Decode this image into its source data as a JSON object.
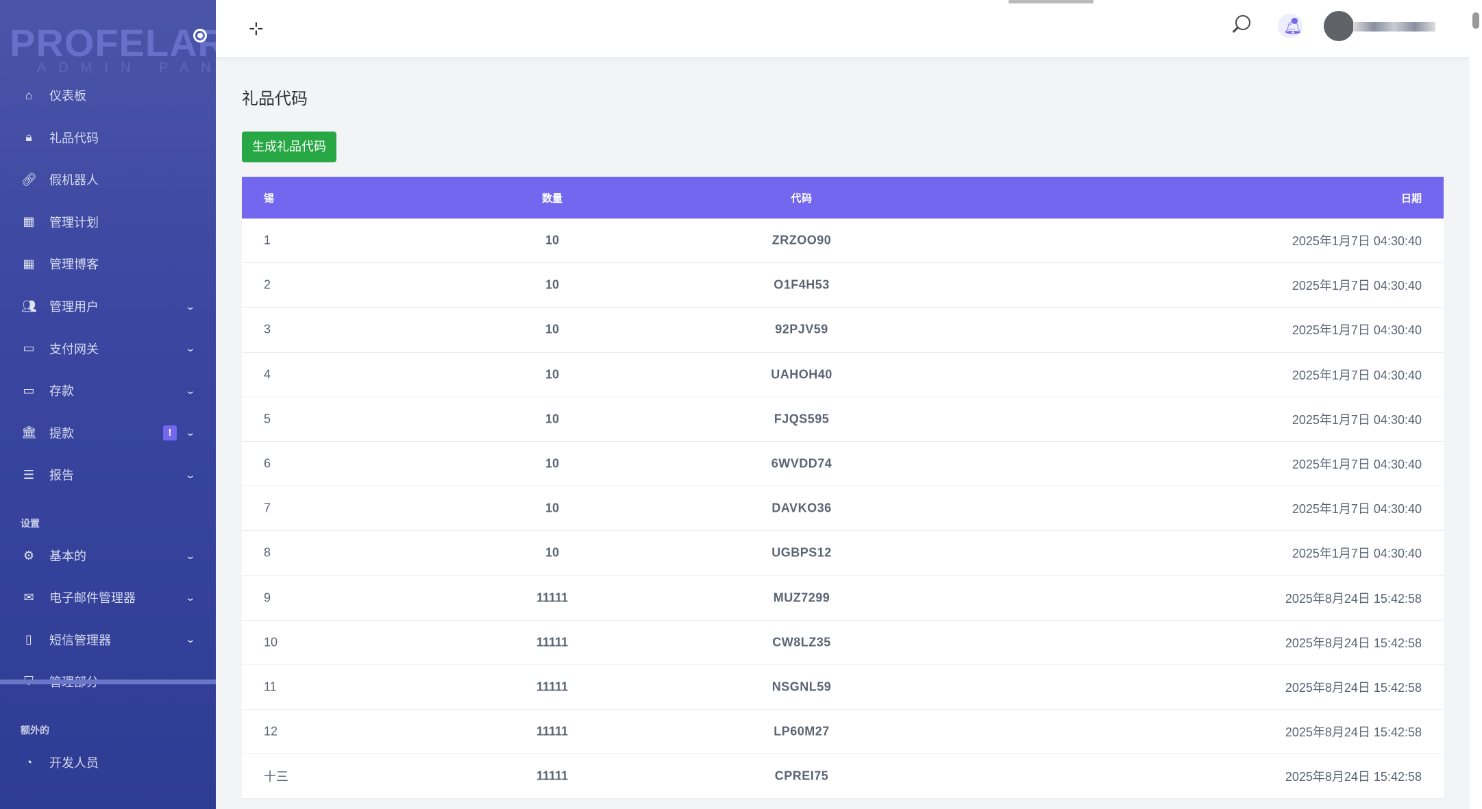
{
  "brand": {
    "logo": "PROFELAR",
    "subtitle": "ADMIN PANEL"
  },
  "sidebar": {
    "items": [
      {
        "label": "仪表板",
        "icon": "home-icon",
        "chevron": false
      },
      {
        "label": "礼品代码",
        "icon": "lock-icon",
        "chevron": false
      },
      {
        "label": "假机器人",
        "icon": "link-icon",
        "chevron": false
      },
      {
        "label": "管理计划",
        "icon": "calculator-icon",
        "chevron": false
      },
      {
        "label": "管理博客",
        "icon": "calculator-icon",
        "chevron": false
      },
      {
        "label": "管理用户",
        "icon": "users-icon",
        "chevron": true
      },
      {
        "label": "支付网关",
        "icon": "credit-card-icon",
        "chevron": true
      },
      {
        "label": "存款",
        "icon": "credit-card-icon",
        "chevron": true
      },
      {
        "label": "提款",
        "icon": "bank-icon",
        "chevron": true,
        "badge": "!"
      },
      {
        "label": "报告",
        "icon": "list-icon",
        "chevron": true
      }
    ],
    "settings_title": "设置",
    "settings_items": [
      {
        "label": "基本的",
        "icon": "gear-icon"
      },
      {
        "label": "电子邮件管理器",
        "icon": "envelope-icon"
      },
      {
        "label": "短信管理器",
        "icon": "mobile-icon"
      },
      {
        "label": "管理部分",
        "icon": "html5-icon"
      }
    ],
    "extra_title": "额外的",
    "extra_items": [
      {
        "label": "开发人员",
        "icon": "cookie-icon"
      }
    ]
  },
  "page": {
    "title": "礼品代码",
    "generate_button": "生成礼品代码"
  },
  "table": {
    "headers": [
      "锡",
      "数量",
      "代码",
      "日期"
    ],
    "rows": [
      [
        "1",
        "10",
        "ZRZOO90",
        "2025年1月7日 04:30:40"
      ],
      [
        "2",
        "10",
        "O1F4H53",
        "2025年1月7日 04:30:40"
      ],
      [
        "3",
        "10",
        "92PJV59",
        "2025年1月7日 04:30:40"
      ],
      [
        "4",
        "10",
        "UAHOH40",
        "2025年1月7日 04:30:40"
      ],
      [
        "5",
        "10",
        "FJQS595",
        "2025年1月7日 04:30:40"
      ],
      [
        "6",
        "10",
        "6WVDD74",
        "2025年1月7日 04:30:40"
      ],
      [
        "7",
        "10",
        "DAVKO36",
        "2025年1月7日 04:30:40"
      ],
      [
        "8",
        "10",
        "UGBPS12",
        "2025年1月7日 04:30:40"
      ],
      [
        "9",
        "11111",
        "MUZ7299",
        "2025年8月24日 15:42:58"
      ],
      [
        "10",
        "11111",
        "CW8LZ35",
        "2025年8月24日 15:42:58"
      ],
      [
        "11",
        "11111",
        "NSGNL59",
        "2025年8月24日 15:42:58"
      ],
      [
        "12",
        "11111",
        "LP60M27",
        "2025年8月24日 15:42:58"
      ],
      [
        "十三",
        "11111",
        "CPREI75",
        "2025年8月24日 15:42:58"
      ]
    ]
  },
  "colors": {
    "accent": "#7367f0",
    "success": "#28a745",
    "sidebar": "#3a46a0"
  }
}
